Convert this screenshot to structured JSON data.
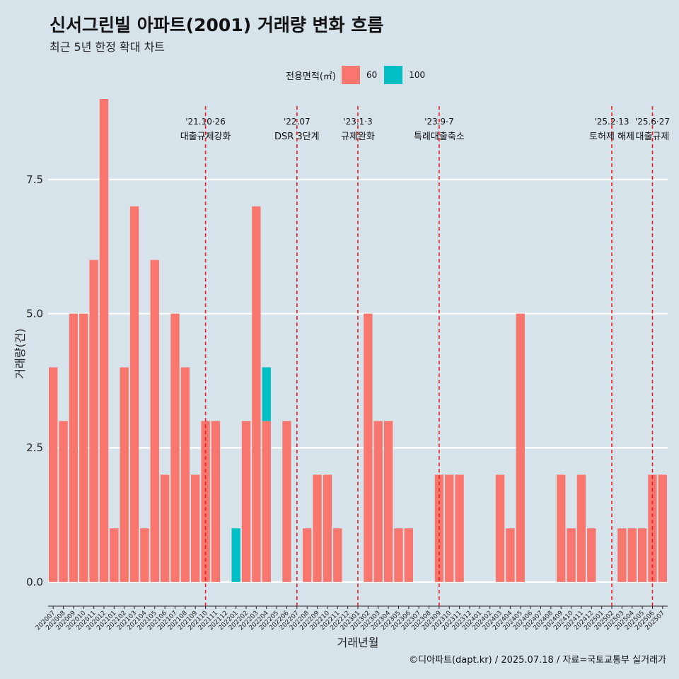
{
  "header": {
    "title": "신서그린빌 아파트(2001) 거래량 변화 흐름",
    "subtitle": "최근 5년 한정 확대 차트"
  },
  "legend": {
    "title": "전용면적(㎡)",
    "items": [
      {
        "label": "60",
        "color": "#f8766d"
      },
      {
        "label": "100",
        "color": "#00bfc4"
      }
    ]
  },
  "caption": "©디아파트(dapt.kr) / 2025.07.18 / 자료=국토교통부 실거래가",
  "chart_data": {
    "type": "bar",
    "stacked": true,
    "xlabel": "거래년월",
    "ylabel": "거래량(건)",
    "ylim": [
      -0.45,
      9.0
    ],
    "yticks": [
      0.0,
      2.5,
      5.0,
      7.5
    ],
    "ytick_labels": [
      "0.0",
      "2.5",
      "5.0",
      "7.5"
    ],
    "grid": "horizontal",
    "legend_position": "top",
    "categories": [
      "202007",
      "202008",
      "202009",
      "202010",
      "202011",
      "202012",
      "202101",
      "202102",
      "202103",
      "202104",
      "202105",
      "202106",
      "202107",
      "202108",
      "202109",
      "202110",
      "202111",
      "202112",
      "202201",
      "202202",
      "202203",
      "202204",
      "202205",
      "202206",
      "202207",
      "202208",
      "202209",
      "202210",
      "202211",
      "202212",
      "202301",
      "202302",
      "202303",
      "202304",
      "202305",
      "202306",
      "202307",
      "202308",
      "202309",
      "202310",
      "202311",
      "202312",
      "202401",
      "202402",
      "202403",
      "202404",
      "202405",
      "202406",
      "202407",
      "202408",
      "202409",
      "202410",
      "202411",
      "202412",
      "202501",
      "202502",
      "202503",
      "202504",
      "202505",
      "202506",
      "202507"
    ],
    "series": [
      {
        "name": "60",
        "color": "#f8766d",
        "values": [
          4,
          3,
          5,
          5,
          6,
          9,
          1,
          4,
          7,
          1,
          6,
          2,
          5,
          4,
          2,
          3,
          3,
          0,
          0,
          3,
          7,
          3,
          0,
          3,
          0,
          1,
          2,
          2,
          1,
          0,
          0,
          5,
          3,
          3,
          1,
          1,
          0,
          0,
          2,
          2,
          2,
          0,
          0,
          0,
          2,
          1,
          5,
          0,
          0,
          0,
          2,
          1,
          2,
          1,
          0,
          0,
          1,
          1,
          1,
          2,
          2
        ]
      },
      {
        "name": "100",
        "color": "#00bfc4",
        "values": [
          0,
          0,
          0,
          0,
          0,
          0,
          0,
          0,
          0,
          0,
          0,
          0,
          0,
          0,
          0,
          0,
          0,
          0,
          1,
          0,
          0,
          1,
          0,
          0,
          0,
          0,
          0,
          0,
          0,
          0,
          0,
          0,
          0,
          0,
          0,
          0,
          0,
          0,
          0,
          0,
          0,
          0,
          0,
          0,
          0,
          0,
          0,
          0,
          0,
          0,
          0,
          0,
          0,
          0,
          0,
          0,
          0,
          0,
          0,
          0,
          0
        ]
      }
    ],
    "events": [
      {
        "x": "202110",
        "date": "'21.10·26",
        "label": "대출규제강화"
      },
      {
        "x": "202207",
        "date": "'22.07",
        "label": "DSR 3단계"
      },
      {
        "x": "202301",
        "date": "'23.1·3",
        "label": "규제완화"
      },
      {
        "x": "202309",
        "date": "'23.9·7",
        "label": "특례대출축소"
      },
      {
        "x": "202502",
        "date": "'25.2·13",
        "label": "토허제 해제"
      },
      {
        "x": "202506",
        "date": "'25.6·27",
        "label": "대출규제"
      }
    ]
  }
}
